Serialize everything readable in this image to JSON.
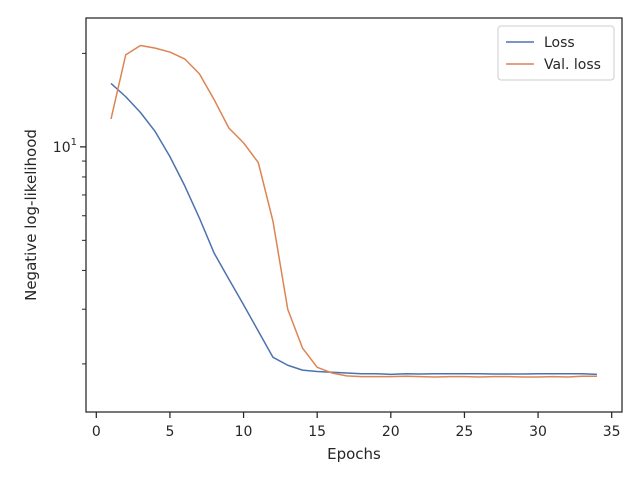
{
  "chart_data": {
    "type": "line",
    "xlabel": "Epochs",
    "ylabel": "Negative log-likelihood",
    "yscale": "log",
    "xlim": [
      -0.7,
      35.7
    ],
    "ylim": [
      1.4,
      26
    ],
    "xticks": [
      0,
      5,
      10,
      15,
      20,
      25,
      30,
      35
    ],
    "yticks_major": [
      {
        "value": 10,
        "base": "10",
        "exp": "1"
      }
    ],
    "yticks_minor": [
      2,
      3,
      4,
      5,
      6,
      7,
      8,
      9,
      20
    ],
    "grid": false,
    "legend_position": "top-right",
    "series": [
      {
        "name": "Loss",
        "color": "#4c72b0",
        "x": [
          1,
          2,
          3,
          4,
          5,
          6,
          7,
          8,
          9,
          10,
          11,
          12,
          13,
          14,
          15,
          16,
          17,
          18,
          19,
          20,
          21,
          22,
          23,
          24,
          25,
          26,
          27,
          28,
          29,
          30,
          31,
          32,
          33,
          34
        ],
        "y": [
          16.0,
          14.5,
          12.9,
          11.2,
          9.3,
          7.5,
          5.9,
          4.55,
          3.75,
          3.1,
          2.55,
          2.1,
          1.98,
          1.91,
          1.89,
          1.88,
          1.87,
          1.86,
          1.86,
          1.85,
          1.86,
          1.855,
          1.86,
          1.86,
          1.86,
          1.86,
          1.855,
          1.855,
          1.855,
          1.86,
          1.86,
          1.86,
          1.86,
          1.85
        ]
      },
      {
        "name": "Val. loss",
        "color": "#dd8452",
        "x": [
          1,
          2,
          3,
          4,
          5,
          6,
          7,
          8,
          9,
          10,
          11,
          12,
          13,
          14,
          15,
          16,
          17,
          18,
          19,
          20,
          21,
          22,
          23,
          24,
          25,
          26,
          27,
          28,
          29,
          30,
          31,
          32,
          33,
          34
        ],
        "y": [
          12.3,
          19.8,
          21.2,
          20.8,
          20.2,
          19.2,
          17.2,
          14.2,
          11.5,
          10.3,
          8.9,
          5.75,
          3.0,
          2.25,
          1.95,
          1.87,
          1.83,
          1.82,
          1.82,
          1.82,
          1.825,
          1.82,
          1.815,
          1.82,
          1.82,
          1.815,
          1.82,
          1.82,
          1.815,
          1.815,
          1.82,
          1.815,
          1.825,
          1.825
        ]
      }
    ]
  }
}
